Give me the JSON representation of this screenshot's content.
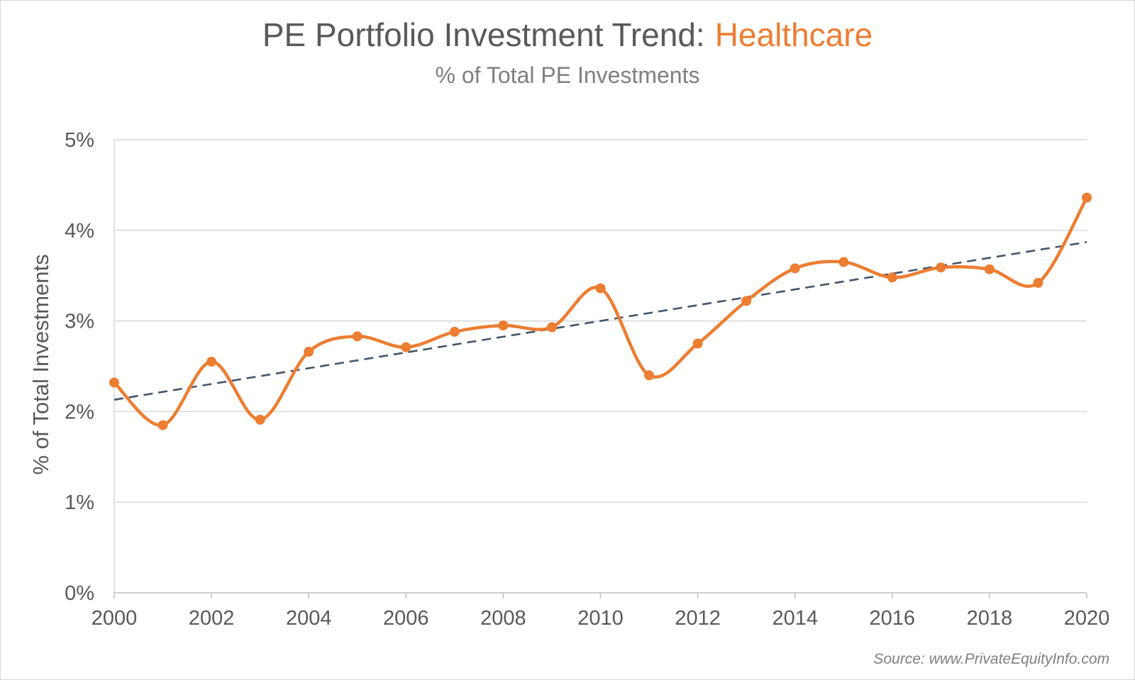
{
  "chart_data": {
    "type": "line",
    "title": "PE Portfolio Investment Trend:",
    "title_highlight": "Healthcare",
    "subtitle": "% of Total PE Investments",
    "ylabel": "% of Total Investments",
    "xlabel": "",
    "source": "Source: www.PrivateEquityInfo.com",
    "ylim": [
      0,
      5
    ],
    "xlim": [
      2000,
      2020
    ],
    "y_ticks": [
      "0%",
      "1%",
      "2%",
      "3%",
      "4%",
      "5%"
    ],
    "x_ticks": [
      "2000",
      "2002",
      "2004",
      "2006",
      "2008",
      "2010",
      "2012",
      "2014",
      "2016",
      "2018",
      "2020"
    ],
    "grid": true,
    "series": [
      {
        "color": "#ED7D31",
        "x": [
          2000,
          2001,
          2002,
          2003,
          2004,
          2005,
          2006,
          2007,
          2008,
          2009,
          2010,
          2011,
          2012,
          2013,
          2014,
          2015,
          2016,
          2017,
          2018,
          2019,
          2020
        ],
        "values": [
          2.32,
          1.85,
          2.55,
          1.91,
          2.66,
          2.83,
          2.71,
          2.88,
          2.95,
          2.93,
          3.36,
          2.4,
          2.75,
          3.22,
          3.58,
          3.65,
          3.48,
          3.59,
          3.57,
          3.42,
          4.36
        ]
      }
    ],
    "trendline": {
      "type": "linear",
      "style": "dashed",
      "color": "#44546A",
      "start": 2.13,
      "end": 3.87
    }
  }
}
